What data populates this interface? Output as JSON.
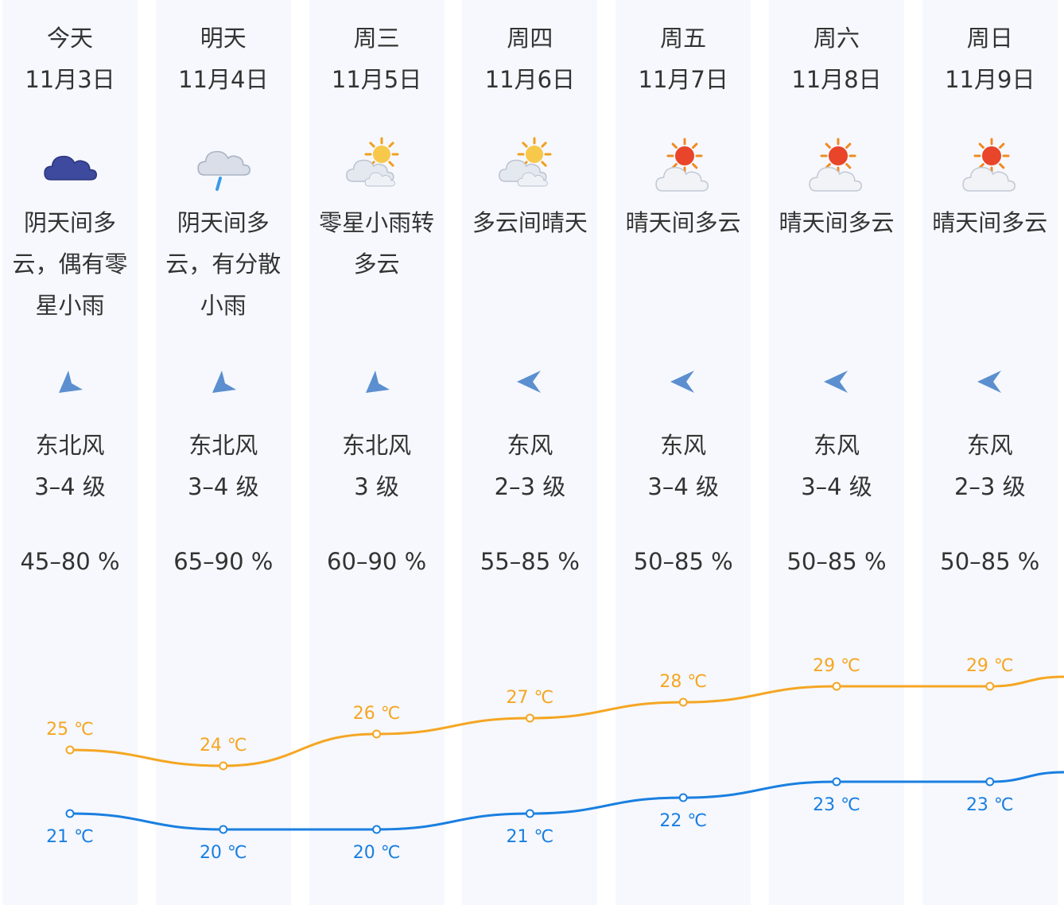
{
  "days": [
    {
      "day": "今天",
      "date": "11月3日",
      "icon": "overcast-rain-icon",
      "cond_lines": [
        "阴天间多",
        "云，偶有零",
        "星小雨"
      ],
      "wind_dir": "东北风",
      "wind_level": "3–4 级",
      "humidity": "45–80 %",
      "wind_arrow": "northeast-arrow-icon",
      "high_label": "25 ℃",
      "low_label": "21 ℃"
    },
    {
      "day": "明天",
      "date": "11月4日",
      "icon": "cloud-rain-icon",
      "cond_lines": [
        "阴天间多",
        "云，有分散",
        "小雨"
      ],
      "wind_dir": "东北风",
      "wind_level": "3–4 级",
      "humidity": "65–90 %",
      "wind_arrow": "northeast-arrow-icon",
      "high_label": "24 ℃",
      "low_label": "20 ℃"
    },
    {
      "day": "周三",
      "date": "11月5日",
      "icon": "sun-cloud-icon",
      "cond_lines": [
        "零星小雨转",
        "多云"
      ],
      "wind_dir": "东北风",
      "wind_level": "3 级",
      "humidity": "60–90 %",
      "wind_arrow": "northeast-arrow-icon",
      "high_label": "26 ℃",
      "low_label": "20 ℃"
    },
    {
      "day": "周四",
      "date": "11月6日",
      "icon": "sun-cloud-icon",
      "cond_lines": [
        "多云间晴天"
      ],
      "wind_dir": "东风",
      "wind_level": "2–3 级",
      "humidity": "55–85 %",
      "wind_arrow": "east-arrow-icon",
      "high_label": "27 ℃",
      "low_label": "21 ℃"
    },
    {
      "day": "周五",
      "date": "11月7日",
      "icon": "sunny-cloud-icon",
      "cond_lines": [
        "晴天间多云"
      ],
      "wind_dir": "东风",
      "wind_level": "3–4 级",
      "humidity": "50–85 %",
      "wind_arrow": "east-arrow-icon",
      "high_label": "28 ℃",
      "low_label": "22 ℃"
    },
    {
      "day": "周六",
      "date": "11月8日",
      "icon": "sunny-cloud-icon",
      "cond_lines": [
        "晴天间多云"
      ],
      "wind_dir": "东风",
      "wind_level": "3–4 级",
      "humidity": "50–85 %",
      "wind_arrow": "east-arrow-icon",
      "high_label": "29 ℃",
      "low_label": "23 ℃"
    },
    {
      "day": "周日",
      "date": "11月9日",
      "icon": "sunny-cloud-icon",
      "cond_lines": [
        "晴天间多云"
      ],
      "wind_dir": "东风",
      "wind_level": "2–3 级",
      "humidity": "50–85 %",
      "wind_arrow": "east-arrow-icon",
      "high_label": "29 ℃",
      "low_label": "23 ℃"
    }
  ],
  "chart_data": {
    "type": "line",
    "x": [
      "今天",
      "明天",
      "周三",
      "周四",
      "周五",
      "周六",
      "周日"
    ],
    "series": [
      {
        "values": [
          25,
          24,
          26,
          27,
          28,
          29,
          29
        ],
        "color": "#f5a623"
      },
      {
        "values": [
          21,
          20,
          20,
          21,
          22,
          23,
          23
        ],
        "color": "#1a7fe0"
      }
    ],
    "grid": false
  },
  "colors": {
    "high": "#f5a623",
    "low": "#1a7fe0",
    "column_bg": "#f6f8fd",
    "text": "#333333"
  }
}
